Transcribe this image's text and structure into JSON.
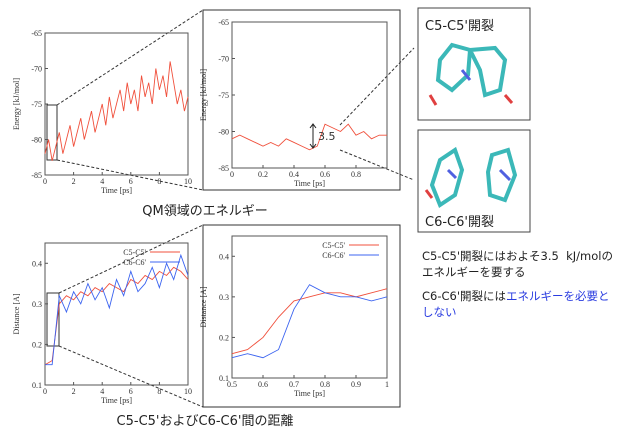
{
  "chart_data": [
    {
      "type": "line",
      "x": [
        0,
        0.25,
        0.5,
        0.75,
        1,
        1.25,
        1.5,
        1.75,
        2,
        2.25,
        2.5,
        2.75,
        3,
        3.25,
        3.5,
        3.75,
        4,
        4.25,
        4.5,
        4.75,
        5,
        5.25,
        5.5,
        5.75,
        6,
        6.25,
        6.5,
        6.75,
        7,
        7.25,
        7.5,
        7.75,
        8,
        8.25,
        8.5,
        8.75,
        9,
        9.25,
        9.5,
        9.75,
        10
      ],
      "values": [
        -82,
        -80,
        -83,
        -81,
        -79,
        -82,
        -80,
        -78,
        -81,
        -79,
        -77,
        -80,
        -78,
        -76,
        -79,
        -77,
        -75,
        -78,
        -74,
        -77,
        -75,
        -73,
        -76,
        -72,
        -75,
        -73,
        -76,
        -71,
        -74,
        -72,
        -75,
        -70,
        -73,
        -71,
        -74,
        -69,
        -72,
        -75,
        -73,
        -76,
        -74
      ],
      "color": "#f0503c",
      "xlim": [
        0,
        10
      ],
      "ylim": [
        -85,
        -65
      ],
      "xticks": [
        0,
        2,
        4,
        6,
        8,
        10
      ],
      "yticks": [
        -85,
        -80,
        -75,
        -70,
        -65
      ],
      "xlabel": "Time [ps]",
      "ylabel": "Energy [kJ/mol]"
    },
    {
      "type": "line",
      "x": [
        0,
        0.05,
        0.1,
        0.15,
        0.2,
        0.25,
        0.3,
        0.35,
        0.4,
        0.45,
        0.5,
        0.55,
        0.6,
        0.65,
        0.7,
        0.75,
        0.8,
        0.85,
        0.9,
        0.95,
        1
      ],
      "values": [
        -81,
        -80.5,
        -81,
        -81.5,
        -82,
        -81.5,
        -82,
        -81,
        -81.5,
        -82,
        -82.5,
        -82,
        -79,
        -79.5,
        -80,
        -79,
        -80.5,
        -80,
        -81,
        -80.5,
        -80.5
      ],
      "color": "#f0503c",
      "xlim": [
        0,
        1
      ],
      "ylim": [
        -85,
        -65
      ],
      "xticks": [
        0,
        0.2,
        0.4,
        0.6,
        0.8
      ],
      "yticks": [
        -85,
        -80,
        -75,
        -70,
        -65
      ],
      "xlabel": "Time [ps]",
      "ylabel": "Energy [kJ/mol]",
      "annotation": "3.5"
    },
    {
      "type": "line",
      "x": [
        0,
        0.5,
        1,
        1.5,
        2,
        2.5,
        3,
        3.5,
        4,
        4.5,
        5,
        5.5,
        6,
        6.5,
        7,
        7.5,
        8,
        8.5,
        9,
        9.5,
        10
      ],
      "series": [
        {
          "name": "C5-C5'",
          "color": "#f0503c",
          "values": [
            0.15,
            0.16,
            0.3,
            0.32,
            0.31,
            0.33,
            0.32,
            0.34,
            0.33,
            0.35,
            0.34,
            0.33,
            0.36,
            0.35,
            0.37,
            0.36,
            0.38,
            0.37,
            0.39,
            0.38,
            0.36
          ]
        },
        {
          "name": "C6-C6'",
          "color": "#3c64f0",
          "values": [
            0.15,
            0.15,
            0.32,
            0.28,
            0.33,
            0.3,
            0.35,
            0.31,
            0.34,
            0.29,
            0.36,
            0.32,
            0.38,
            0.33,
            0.35,
            0.39,
            0.34,
            0.4,
            0.36,
            0.42,
            0.37
          ]
        }
      ],
      "xlim": [
        0,
        10
      ],
      "ylim": [
        0.1,
        0.45
      ],
      "xticks": [
        0,
        2,
        4,
        6,
        8,
        10
      ],
      "yticks": [
        0.1,
        0.2,
        0.3,
        0.4
      ],
      "xlabel": "Time [ps]",
      "ylabel": "Distance [A]",
      "legend": "upper right"
    },
    {
      "type": "line",
      "x": [
        0.5,
        0.55,
        0.6,
        0.65,
        0.7,
        0.75,
        0.8,
        0.85,
        0.9,
        0.95,
        1
      ],
      "series": [
        {
          "name": "C5-C5'",
          "color": "#f0503c",
          "values": [
            0.16,
            0.17,
            0.2,
            0.25,
            0.29,
            0.3,
            0.31,
            0.31,
            0.3,
            0.31,
            0.32
          ]
        },
        {
          "name": "C6-C6'",
          "color": "#3c64f0",
          "values": [
            0.15,
            0.16,
            0.15,
            0.17,
            0.27,
            0.33,
            0.31,
            0.3,
            0.3,
            0.29,
            0.3
          ]
        }
      ],
      "xlim": [
        0.5,
        1
      ],
      "ylim": [
        0.1,
        0.45
      ],
      "xticks": [
        0.5,
        0.6,
        0.7,
        0.8,
        0.9,
        1
      ],
      "yticks": [
        0.1,
        0.2,
        0.3,
        0.4
      ],
      "xlabel": "Time [ps]",
      "ylabel": "Distance [A]",
      "legend": "upper right"
    }
  ],
  "captions": [
    "QM領域のエネルギー",
    "C5-C5'およびC6-C6'間の距離"
  ],
  "structures": [
    "C5-C5'開裂",
    "C6-C6'開裂"
  ],
  "notes": [
    "C5-C5'開裂にはおよそ3.5  kJ/molの",
    "エネルギーを要する",
    "C6-C6'開裂には",
    "エネルギーを必要と",
    "しない"
  ]
}
